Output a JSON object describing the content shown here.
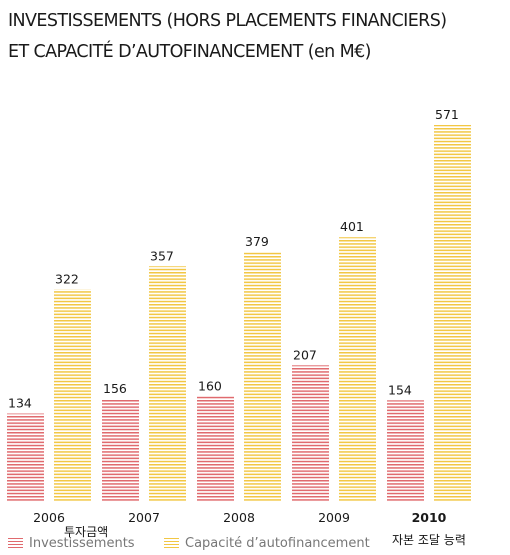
{
  "title_lines": [
    "INVESTISSEMENTS (HORS PLACEMENTS FINANCIERS)",
    "ET CAPACITÉ D’AUTOFINANCEMENT (en M€)"
  ],
  "colors": {
    "investissements": "#e06a6e",
    "capacite": "#f2c744"
  },
  "legend": {
    "investissements": "Investissements",
    "capacite": "Capacité d’autofinancement"
  },
  "annotations": {
    "invest_kr": "투자금액",
    "capacite_kr": "자본 조달 능력"
  },
  "chart_data": {
    "type": "bar",
    "categories": [
      "2006",
      "2007",
      "2008",
      "2009",
      "2010"
    ],
    "highlight_category": "2010",
    "series": [
      {
        "name": "Investissements",
        "values": [
          134,
          156,
          160,
          207,
          154
        ]
      },
      {
        "name": "Capacité d’autofinancement",
        "values": [
          322,
          357,
          379,
          401,
          571
        ]
      }
    ],
    "ylim": [
      0,
      571
    ],
    "grid": false,
    "legend_position": "bottom"
  }
}
